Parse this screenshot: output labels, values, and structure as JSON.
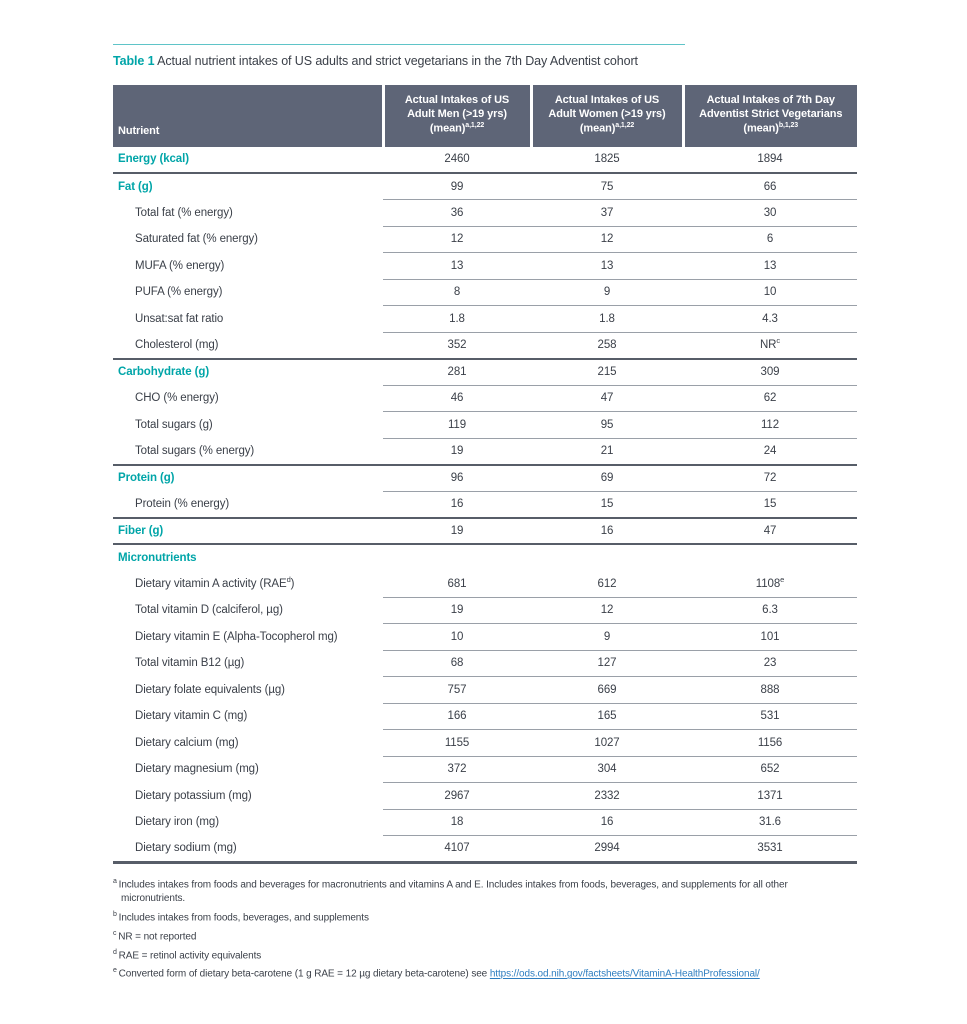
{
  "colors": {
    "accent": "#00a5a8",
    "header_bg": "#5e6577",
    "rule_light": "#9aa0a8",
    "rule_dark": "#575d68",
    "link": "#2e7ec0",
    "top_rule": "#5fc4c8"
  },
  "title": {
    "label": "Table 1",
    "text": "Actual nutrient intakes of US adults and strict vegetarians in the 7th Day Adventist cohort"
  },
  "table": {
    "columns": [
      {
        "label": "Nutrient",
        "sup": ""
      },
      {
        "label": "Actual Intakes of US Adult Men (>19 yrs) (mean)",
        "sup": "a,1,22"
      },
      {
        "label": "Actual Intakes of US Adult Women (>19 yrs) (mean)",
        "sup": "a,1,22"
      },
      {
        "label": "Actual Intakes of 7th Day Adventist Strict Vegetarians (mean)",
        "sup": "b,1,23"
      }
    ],
    "rows": [
      {
        "label": "Energy (kcal)",
        "heading": true,
        "indent": false,
        "values": [
          "2460",
          "1825",
          "1894"
        ],
        "rule": "full"
      },
      {
        "label": "Fat (g)",
        "heading": true,
        "indent": false,
        "values": [
          "99",
          "75",
          "66"
        ],
        "rule": "inset"
      },
      {
        "label": "Total fat (% energy)",
        "heading": false,
        "indent": true,
        "values": [
          "36",
          "37",
          "30"
        ],
        "rule": "inset"
      },
      {
        "label": "Saturated fat (% energy)",
        "heading": false,
        "indent": true,
        "values": [
          "12",
          "12",
          "6"
        ],
        "rule": "inset"
      },
      {
        "label": "MUFA (% energy)",
        "heading": false,
        "indent": true,
        "values": [
          "13",
          "13",
          "13"
        ],
        "rule": "inset"
      },
      {
        "label": "PUFA (% energy)",
        "heading": false,
        "indent": true,
        "values": [
          "8",
          "9",
          "10"
        ],
        "rule": "inset"
      },
      {
        "label": "Unsat:sat fat ratio",
        "heading": false,
        "indent": true,
        "values": [
          "1.8",
          "1.8",
          "4.3"
        ],
        "rule": "inset"
      },
      {
        "label": "Cholesterol (mg)",
        "heading": false,
        "indent": true,
        "values": [
          "352",
          "258",
          {
            "v": "NR",
            "sup": "c"
          }
        ],
        "rule": "full"
      },
      {
        "label": "Carbohydrate (g)",
        "heading": true,
        "indent": false,
        "values": [
          "281",
          "215",
          "309"
        ],
        "rule": "inset"
      },
      {
        "label": "CHO (% energy)",
        "heading": false,
        "indent": true,
        "values": [
          "46",
          "47",
          "62"
        ],
        "rule": "inset"
      },
      {
        "label": "Total sugars (g)",
        "heading": false,
        "indent": true,
        "values": [
          "119",
          "95",
          "112"
        ],
        "rule": "inset"
      },
      {
        "label": "Total sugars (% energy)",
        "heading": false,
        "indent": true,
        "values": [
          "19",
          "21",
          "24"
        ],
        "rule": "full"
      },
      {
        "label": "Protein (g)",
        "heading": true,
        "indent": false,
        "values": [
          "96",
          "69",
          "72"
        ],
        "rule": "inset"
      },
      {
        "label": "Protein (% energy)",
        "heading": false,
        "indent": true,
        "values": [
          "16",
          "15",
          "15"
        ],
        "rule": "full"
      },
      {
        "label": "Fiber (g)",
        "heading": true,
        "indent": false,
        "values": [
          "19",
          "16",
          "47"
        ],
        "rule": "full"
      },
      {
        "label": "Micronutrients",
        "heading": true,
        "indent": false,
        "values": [
          "",
          "",
          ""
        ],
        "rule": "none"
      },
      {
        "label": "Dietary vitamin A activity (RAE",
        "label_sup": "d",
        "label_end": ")",
        "heading": false,
        "indent": true,
        "values": [
          "681",
          "612",
          {
            "v": "1108",
            "sup": "e"
          }
        ],
        "rule": "inset"
      },
      {
        "label": "Total vitamin D (calciferol, µg)",
        "heading": false,
        "indent": true,
        "values": [
          "19",
          "12",
          "6.3"
        ],
        "rule": "inset"
      },
      {
        "label": "Dietary vitamin E (Alpha-Tocopherol mg)",
        "heading": false,
        "indent": true,
        "values": [
          "10",
          "9",
          "101"
        ],
        "rule": "inset"
      },
      {
        "label": "Total vitamin B12 (µg)",
        "heading": false,
        "indent": true,
        "values": [
          "68",
          "127",
          "23"
        ],
        "rule": "inset"
      },
      {
        "label": "Dietary folate equivalents (µg)",
        "heading": false,
        "indent": true,
        "values": [
          "757",
          "669",
          "888"
        ],
        "rule": "inset"
      },
      {
        "label": "Dietary vitamin C (mg)",
        "heading": false,
        "indent": true,
        "values": [
          "166",
          "165",
          "531"
        ],
        "rule": "inset"
      },
      {
        "label": "Dietary calcium (mg)",
        "heading": false,
        "indent": true,
        "values": [
          "1155",
          "1027",
          "1156"
        ],
        "rule": "inset"
      },
      {
        "label": "Dietary magnesium (mg)",
        "heading": false,
        "indent": true,
        "values": [
          "372",
          "304",
          "652"
        ],
        "rule": "inset"
      },
      {
        "label": "Dietary potassium (mg)",
        "heading": false,
        "indent": true,
        "values": [
          "2967",
          "2332",
          "1371"
        ],
        "rule": "inset"
      },
      {
        "label": "Dietary iron (mg)",
        "heading": false,
        "indent": true,
        "values": [
          "18",
          "16",
          "31.6"
        ],
        "rule": "inset"
      },
      {
        "label": "Dietary sodium (mg)",
        "heading": false,
        "indent": true,
        "values": [
          "4107",
          "2994",
          "3531"
        ],
        "rule": "none"
      }
    ]
  },
  "footnotes": [
    {
      "marker": "a",
      "text": "Includes intakes from foods and beverages for macronutrients and vitamins A and E. Includes intakes from foods, beverages, and supplements for all other micronutrients."
    },
    {
      "marker": "b",
      "text": "Includes intakes from foods, beverages, and supplements"
    },
    {
      "marker": "c",
      "text": "NR = not reported"
    },
    {
      "marker": "d",
      "text": "RAE = retinol activity equivalents"
    },
    {
      "marker": "e",
      "text": "Converted form of dietary beta-carotene (1 g RAE = 12 µg dietary beta-carotene) see ",
      "link": "https://ods.od.nih.gov/factsheets/VitaminA-HealthProfessional/"
    }
  ]
}
